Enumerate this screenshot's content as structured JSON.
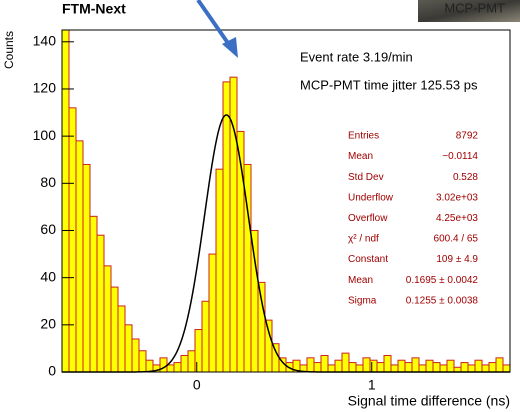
{
  "chart_data": {
    "type": "histogram",
    "title": "FTM-Next",
    "corner_label": "MCP-PMT",
    "x_label": "Signal time difference (ns)",
    "y_label": "Counts",
    "annotations": [
      "Event rate 3.19/min",
      "MCP-PMT time jitter 125.53 ps"
    ],
    "bins": [
      -0.77,
      -0.73,
      -0.69,
      -0.65,
      -0.61,
      -0.57,
      -0.53,
      -0.49,
      -0.45,
      -0.41,
      -0.37,
      -0.33,
      -0.29,
      -0.25,
      -0.21,
      -0.17,
      -0.13,
      -0.09,
      -0.05,
      -0.01,
      0.03,
      0.07,
      0.11,
      0.15,
      0.19,
      0.23,
      0.27,
      0.31,
      0.35,
      0.39,
      0.43,
      0.47,
      0.51,
      0.55,
      0.59,
      0.63,
      0.67,
      0.71,
      0.75,
      0.79,
      0.83,
      0.87,
      0.91,
      0.95,
      0.99,
      1.03,
      1.07,
      1.11,
      1.15,
      1.19,
      1.23,
      1.27,
      1.31,
      1.35,
      1.39,
      1.43,
      1.47,
      1.51,
      1.55,
      1.59,
      1.63,
      1.67,
      1.71,
      1.75,
      1.79
    ],
    "values": [
      145,
      112,
      98,
      88,
      66,
      58,
      45,
      36,
      28,
      20,
      14,
      9,
      5,
      3,
      6,
      3,
      4,
      7,
      9,
      18,
      30,
      50,
      86,
      123,
      125,
      102,
      88,
      60,
      38,
      22,
      12,
      6,
      4,
      5,
      3,
      6,
      4,
      7,
      3,
      5,
      8,
      4,
      3,
      6,
      5,
      4,
      7,
      3,
      5,
      4,
      6,
      3,
      5,
      4,
      3,
      5,
      2,
      4,
      3,
      5,
      3,
      4,
      6,
      3
    ],
    "color": "#ffff00",
    "edge_color": "#cc2222",
    "fit": {
      "constant": 109,
      "mean": 0.1695,
      "sigma": 0.1255,
      "color": "#000000"
    },
    "xlim": [
      -0.77,
      1.79
    ],
    "xticks": [
      0,
      1
    ],
    "ylim": [
      0,
      145
    ],
    "yticks": [
      0,
      20,
      40,
      60,
      80,
      100,
      120,
      140
    ],
    "stats": [
      {
        "label": "Entries",
        "value": "8792"
      },
      {
        "label": "Mean",
        "value": "−0.0114"
      },
      {
        "label": "Std Dev",
        "value": "0.528"
      },
      {
        "label": "Underflow",
        "value": "3.02e+03"
      },
      {
        "label": "Overflow",
        "value": "4.25e+03"
      },
      {
        "label": "χ² / ndf",
        "value": "600.4 / 65"
      },
      {
        "label": "Constant",
        "value": "109 ± 4.9"
      },
      {
        "label": "Mean",
        "value": "0.1695 ± 0.0042"
      },
      {
        "label": "Sigma",
        "value": "0.1255 ± 0.0038"
      }
    ]
  }
}
